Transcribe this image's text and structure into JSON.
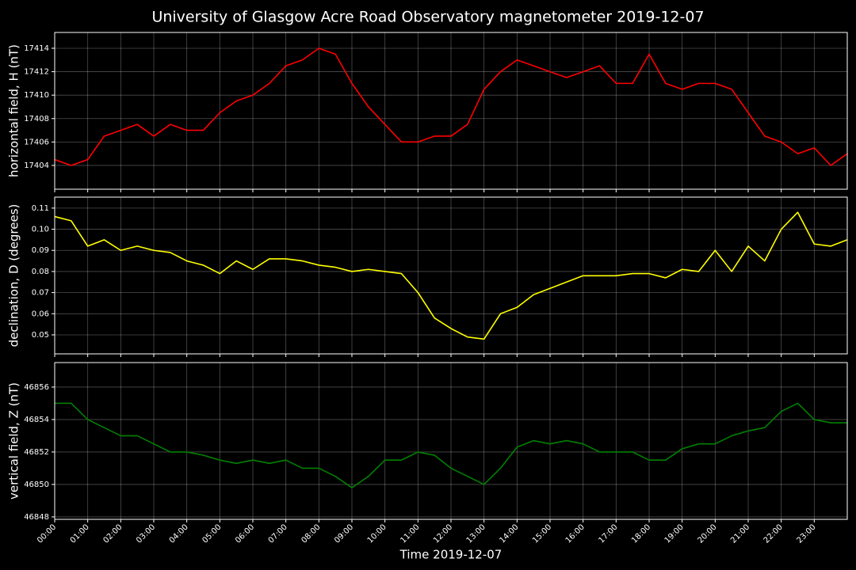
{
  "chart_data": [
    {
      "type": "line",
      "title": "University of Glasgow Acre Road Observatory magnetometer 2019-12-07",
      "ylabel": "horizontal field, H (nT)",
      "color": "#ff0000",
      "grid": true,
      "x": [
        0,
        0.5,
        1,
        1.5,
        2,
        2.5,
        3,
        3.5,
        4,
        4.5,
        5,
        5.5,
        6,
        6.5,
        7,
        7.5,
        8,
        8.5,
        9,
        9.5,
        10,
        10.5,
        11,
        11.5,
        12,
        12.5,
        13,
        13.5,
        14,
        14.5,
        15,
        15.5,
        16,
        16.5,
        17,
        17.5,
        18,
        18.5,
        19,
        19.5,
        20,
        20.5,
        21,
        21.5,
        22,
        22.5,
        23,
        23.5,
        24
      ],
      "values": [
        17404.5,
        17404,
        17404.5,
        17406.5,
        17407,
        17407.5,
        17406.5,
        17407.5,
        17407,
        17407,
        17408.5,
        17409.5,
        17410,
        17411,
        17412.5,
        17413,
        17414,
        17413.5,
        17411,
        17409,
        17407.5,
        17406,
        17406,
        17406.5,
        17406.5,
        17407.5,
        17410.5,
        17412,
        17413,
        17412.5,
        17412,
        17411.5,
        17412,
        17412.5,
        17411,
        17411,
        17413.5,
        17411,
        17410.5,
        17411,
        17411,
        17410.5,
        17408.5,
        17406.5,
        17406,
        17405,
        17405.5,
        17404,
        17405
      ],
      "xlim": [
        0,
        24
      ],
      "ylim": [
        17401.97,
        17415.35
      ],
      "yticks": [
        17404,
        17406,
        17408,
        17410,
        17412,
        17414
      ]
    },
    {
      "type": "line",
      "ylabel": "declination, D (degrees)",
      "color": "#ffff00",
      "grid": true,
      "x": [
        0,
        0.5,
        1,
        1.5,
        2,
        2.5,
        3,
        3.5,
        4,
        4.5,
        5,
        5.5,
        6,
        6.5,
        7,
        7.5,
        8,
        8.5,
        9,
        9.5,
        10,
        10.5,
        11,
        11.5,
        12,
        12.5,
        13,
        13.5,
        14,
        14.5,
        15,
        15.5,
        16,
        16.5,
        17,
        17.5,
        18,
        18.5,
        19,
        19.5,
        20,
        20.5,
        21,
        21.5,
        22,
        22.5,
        23,
        23.5,
        24
      ],
      "values": [
        0.106,
        0.104,
        0.092,
        0.095,
        0.09,
        0.092,
        0.09,
        0.089,
        0.085,
        0.083,
        0.079,
        0.085,
        0.081,
        0.086,
        0.086,
        0.085,
        0.083,
        0.082,
        0.08,
        0.081,
        0.08,
        0.079,
        0.07,
        0.058,
        0.053,
        0.049,
        0.048,
        0.06,
        0.063,
        0.069,
        0.072,
        0.075,
        0.078,
        0.078,
        0.078,
        0.079,
        0.079,
        0.077,
        0.081,
        0.08,
        0.09,
        0.08,
        0.092,
        0.085,
        0.1,
        0.108,
        0.093,
        0.092,
        0.095
      ],
      "xlim": [
        0,
        24
      ],
      "ylim": [
        0.041,
        0.1152
      ],
      "yticks": [
        0.05,
        0.06,
        0.07,
        0.08,
        0.09,
        {
          "value": 0.1,
          "label": "0.10"
        },
        0.11
      ]
    },
    {
      "type": "line",
      "ylabel": "vertical field, Z (nT)",
      "xlabel": "Time 2019-12-07",
      "color": "#008000",
      "grid": true,
      "x": [
        0,
        0.5,
        1,
        1.5,
        2,
        2.5,
        3,
        3.5,
        4,
        4.5,
        5,
        5.5,
        6,
        6.5,
        7,
        7.5,
        8,
        8.5,
        9,
        9.5,
        10,
        10.5,
        11,
        11.5,
        12,
        12.5,
        13,
        13.5,
        14,
        14.5,
        15,
        15.5,
        16,
        16.5,
        17,
        17.5,
        18,
        18.5,
        19,
        19.5,
        20,
        20.5,
        21,
        21.5,
        22,
        22.5,
        23,
        23.5,
        24
      ],
      "values": [
        46855,
        46855,
        46854,
        46853.5,
        46853,
        46853,
        46852.5,
        46852,
        46852,
        46851.8,
        46851.5,
        46851.3,
        46851.5,
        46851.3,
        46851.5,
        46851,
        46851,
        46850.5,
        46849.8,
        46850.5,
        46851.5,
        46851.5,
        46852,
        46851.8,
        46851,
        46850.5,
        46850,
        46851,
        46852.3,
        46852.7,
        46852.5,
        46852.7,
        46852.5,
        46852,
        46852,
        46852,
        46851.5,
        46851.5,
        46852.2,
        46852.5,
        46852.5,
        46853,
        46853.3,
        46853.5,
        46854.5,
        46855,
        46854,
        46853.8,
        46853.8
      ],
      "xlim": [
        0,
        24
      ],
      "ylim": [
        46847.85,
        46857.51
      ],
      "yticks": [
        46848,
        46850,
        46852,
        46854,
        46856
      ],
      "xticks": [
        {
          "value": 0,
          "label": "00:00"
        },
        {
          "value": 1,
          "label": "01:00"
        },
        {
          "value": 2,
          "label": "02:00"
        },
        {
          "value": 3,
          "label": "03:00"
        },
        {
          "value": 4,
          "label": "04:00"
        },
        {
          "value": 5,
          "label": "05:00"
        },
        {
          "value": 6,
          "label": "06:00"
        },
        {
          "value": 7,
          "label": "07:00"
        },
        {
          "value": 8,
          "label": "08:00"
        },
        {
          "value": 9,
          "label": "09:00"
        },
        {
          "value": 10,
          "label": "10:00"
        },
        {
          "value": 11,
          "label": "11:00"
        },
        {
          "value": 12,
          "label": "12:00"
        },
        {
          "value": 13,
          "label": "13:00"
        },
        {
          "value": 14,
          "label": "14:00"
        },
        {
          "value": 15,
          "label": "15:00"
        },
        {
          "value": 16,
          "label": "16:00"
        },
        {
          "value": 17,
          "label": "17:00"
        },
        {
          "value": 18,
          "label": "18:00"
        },
        {
          "value": 19,
          "label": "19:00"
        },
        {
          "value": 20,
          "label": "20:00"
        },
        {
          "value": 21,
          "label": "21:00"
        },
        {
          "value": 22,
          "label": "22:00"
        },
        {
          "value": 23,
          "label": "23:00"
        }
      ]
    }
  ]
}
